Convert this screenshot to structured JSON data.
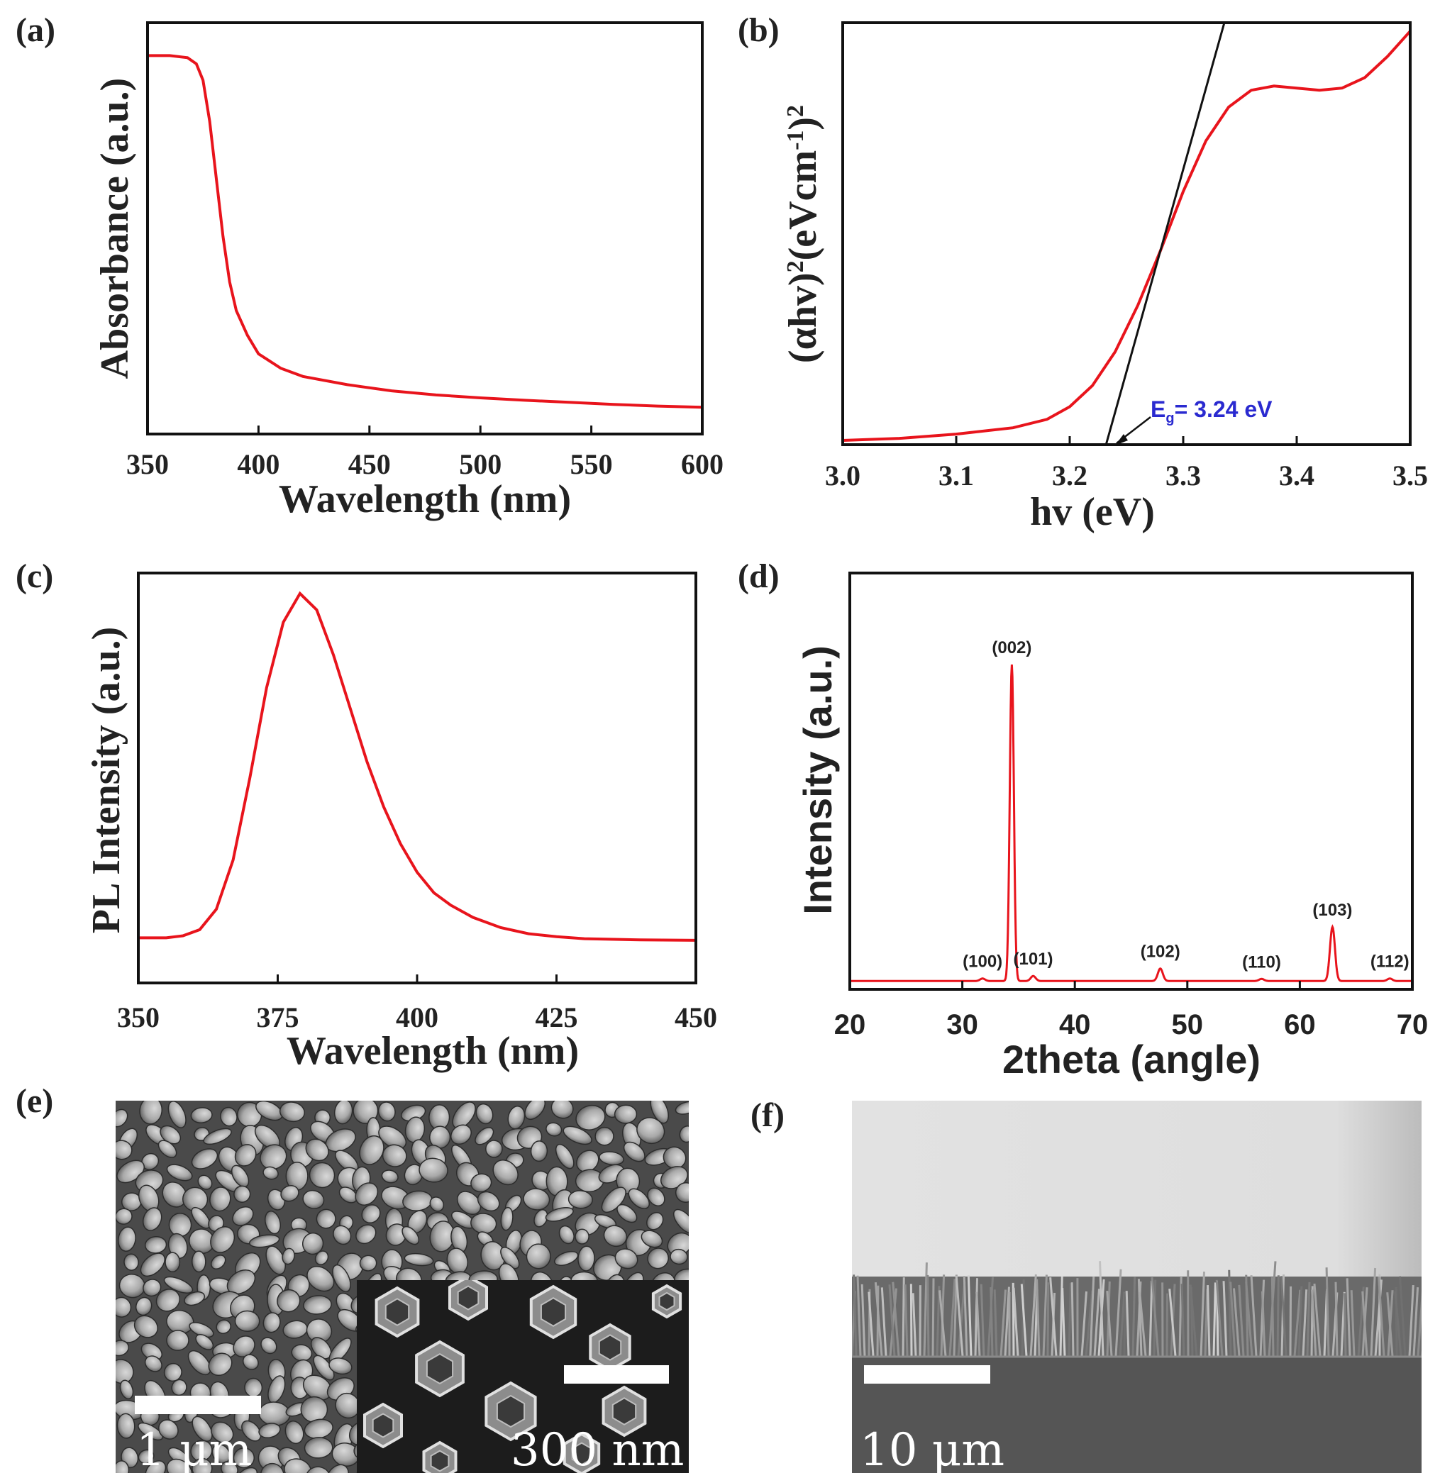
{
  "colors": {
    "series": "#e8141c",
    "frame": "#111111",
    "fit_line": "#111111",
    "annotation": "#2a2ad0"
  },
  "panels": {
    "a": {
      "letter": "(a)"
    },
    "b": {
      "letter": "(b)",
      "ylabel_parts": [
        "(αhv)",
        "2",
        "(eVcm",
        "-1",
        ")",
        "2"
      ],
      "annotation": {
        "main": "E",
        "sub": "g",
        "rest": "= 3.24 eV"
      }
    },
    "c": {
      "letter": "(c)"
    },
    "d": {
      "letter": "(d)"
    },
    "e": {
      "letter": "(e)",
      "scale_main": "1 μm",
      "scale_inset": "300 nm"
    },
    "f": {
      "letter": "(f)",
      "scale": "10 μm"
    }
  },
  "chart_data": [
    {
      "panel": "a",
      "type": "line",
      "xlabel": "Wavelength (nm)",
      "ylabel": "Absorbance (a.u.)",
      "xlim": [
        350,
        600
      ],
      "ylim": [
        0,
        1.0
      ],
      "xticks": [
        350,
        400,
        450,
        500,
        550,
        600
      ],
      "yticks_shown": false,
      "grid": false,
      "series": [
        {
          "x": [
            350,
            360,
            368,
            372,
            375,
            378,
            381,
            384,
            387,
            390,
            395,
            400,
            410,
            420,
            440,
            460,
            480,
            500,
            520,
            540,
            560,
            580,
            600
          ],
          "y": [
            0.92,
            0.92,
            0.915,
            0.9,
            0.86,
            0.76,
            0.62,
            0.48,
            0.37,
            0.3,
            0.24,
            0.195,
            0.16,
            0.14,
            0.12,
            0.105,
            0.095,
            0.088,
            0.082,
            0.077,
            0.072,
            0.068,
            0.065
          ]
        }
      ]
    },
    {
      "panel": "b",
      "type": "line",
      "xlabel": "hv (eV)",
      "ylabel": "(αhv)2(eVcm-1)2",
      "xlim": [
        3.0,
        3.5
      ],
      "ylim": [
        0,
        1.0
      ],
      "xticks": [
        3.0,
        3.1,
        3.2,
        3.3,
        3.4,
        3.5
      ],
      "yticks_shown": false,
      "grid": false,
      "series": [
        {
          "x": [
            3.0,
            3.05,
            3.1,
            3.15,
            3.18,
            3.2,
            3.22,
            3.24,
            3.26,
            3.28,
            3.3,
            3.32,
            3.34,
            3.36,
            3.38,
            3.4,
            3.42,
            3.44,
            3.46,
            3.48,
            3.5
          ],
          "y": [
            0.01,
            0.015,
            0.025,
            0.04,
            0.06,
            0.09,
            0.14,
            0.22,
            0.33,
            0.46,
            0.6,
            0.72,
            0.8,
            0.84,
            0.85,
            0.845,
            0.84,
            0.845,
            0.87,
            0.92,
            0.98
          ]
        }
      ],
      "fit_line": {
        "x": [
          3.232,
          3.355
        ],
        "y": [
          0.0,
          1.18
        ]
      },
      "bandgap_eV": 3.24
    },
    {
      "panel": "c",
      "type": "line",
      "xlabel": "Wavelength (nm)",
      "ylabel": "PL Intensity (a.u.)",
      "xlim": [
        350,
        450
      ],
      "ylim": [
        0,
        1.0
      ],
      "xticks": [
        350,
        375,
        400,
        425,
        450
      ],
      "yticks_shown": false,
      "grid": false,
      "series": [
        {
          "x": [
            350,
            355,
            358,
            361,
            364,
            367,
            370,
            373,
            376,
            379,
            382,
            385,
            388,
            391,
            394,
            397,
            400,
            403,
            406,
            410,
            415,
            420,
            425,
            430,
            440,
            450
          ],
          "y": [
            0.11,
            0.11,
            0.115,
            0.13,
            0.18,
            0.3,
            0.5,
            0.72,
            0.88,
            0.95,
            0.91,
            0.8,
            0.67,
            0.54,
            0.43,
            0.34,
            0.27,
            0.22,
            0.19,
            0.16,
            0.135,
            0.12,
            0.113,
            0.108,
            0.105,
            0.104
          ]
        }
      ]
    },
    {
      "panel": "d",
      "type": "line",
      "xlabel": "2theta (angle)",
      "ylabel": "Intensity (a.u.)",
      "xlim": [
        20,
        70
      ],
      "ylim": [
        0,
        1.0
      ],
      "xticks": [
        20,
        30,
        40,
        50,
        60,
        70
      ],
      "yticks_shown": false,
      "grid": false,
      "baseline": 0.02,
      "peaks": [
        {
          "label": "(100)",
          "x": 31.8,
          "height": 0.006
        },
        {
          "label": "(002)",
          "x": 34.4,
          "height": 0.76
        },
        {
          "label": "(101)",
          "x": 36.3,
          "height": 0.012
        },
        {
          "label": "(102)",
          "x": 47.6,
          "height": 0.03
        },
        {
          "label": "(110)",
          "x": 56.6,
          "height": 0.005
        },
        {
          "label": "(103)",
          "x": 62.9,
          "height": 0.13
        },
        {
          "label": "(112)",
          "x": 68.0,
          "height": 0.006
        }
      ]
    }
  ]
}
